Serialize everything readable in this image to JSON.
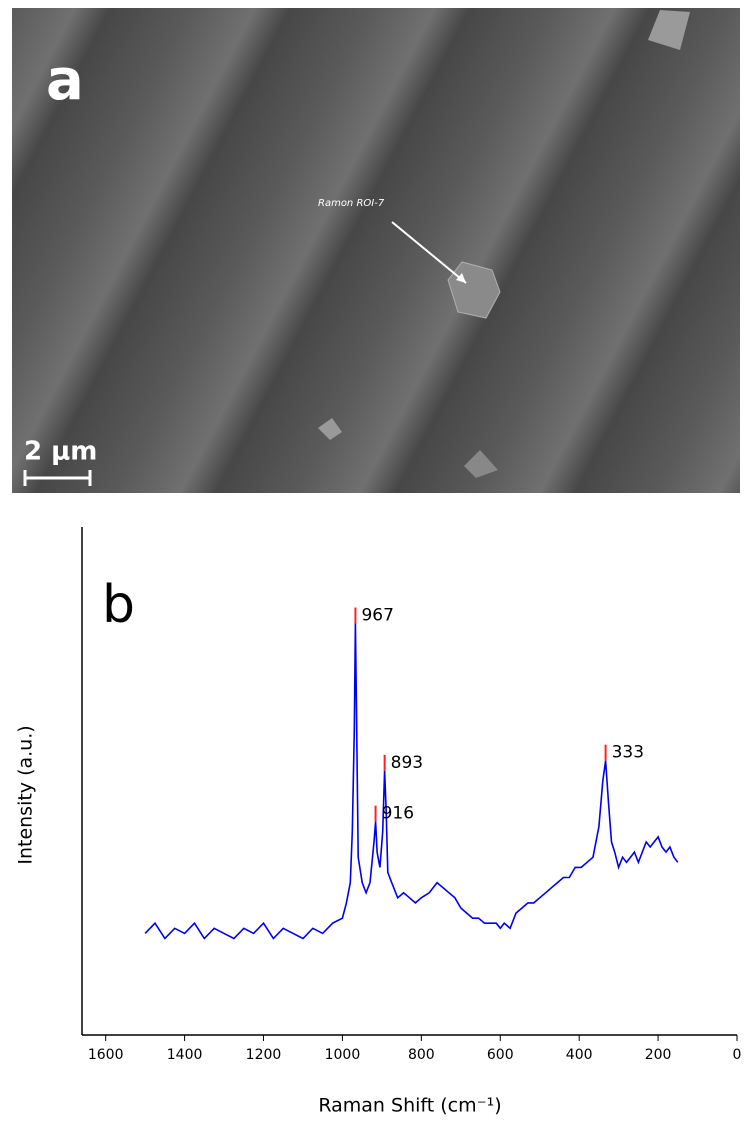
{
  "panel_a": {
    "label": "a",
    "annotation": "Ramon ROI-7",
    "scale_bar": "2 μm"
  },
  "chart_data": {
    "type": "line",
    "panel_label": "b",
    "x_label": "Raman Shift (cm⁻¹)",
    "y_label": "Intensity (a.u.)",
    "xlim": [
      1660,
      0
    ],
    "ylim": [
      0,
      100
    ],
    "xticks": [
      1600,
      1400,
      1200,
      1000,
      800,
      600,
      400,
      200,
      0
    ],
    "x": [
      1500,
      1475,
      1450,
      1425,
      1400,
      1375,
      1350,
      1325,
      1300,
      1275,
      1250,
      1225,
      1200,
      1175,
      1150,
      1125,
      1100,
      1075,
      1050,
      1025,
      1000,
      990,
      980,
      975,
      970,
      967,
      964,
      960,
      950,
      940,
      930,
      920,
      916,
      912,
      905,
      898,
      893,
      889,
      885,
      875,
      860,
      845,
      830,
      815,
      800,
      780,
      760,
      745,
      730,
      715,
      700,
      685,
      670,
      655,
      640,
      625,
      610,
      600,
      590,
      575,
      560,
      545,
      530,
      515,
      500,
      485,
      470,
      455,
      440,
      425,
      410,
      395,
      380,
      365,
      350,
      340,
      333,
      326,
      318,
      310,
      300,
      290,
      280,
      270,
      260,
      250,
      240,
      230,
      220,
      210,
      200,
      190,
      180,
      170,
      160,
      150
    ],
    "series": [
      {
        "color": "#0000ee",
        "values": [
          20,
          22,
          19,
          21,
          20,
          22,
          19,
          21,
          20,
          19,
          21,
          20,
          22,
          19,
          21,
          20,
          19,
          21,
          20,
          22,
          23,
          26,
          30,
          40,
          60,
          81,
          62,
          35,
          30,
          28,
          30,
          38,
          42,
          36,
          33,
          40,
          52,
          44,
          32,
          30,
          27,
          28,
          27,
          26,
          27,
          28,
          30,
          29,
          28,
          27,
          25,
          24,
          23,
          23,
          22,
          22,
          22,
          21,
          22,
          21,
          24,
          25,
          26,
          26,
          27,
          28,
          29,
          30,
          31,
          31,
          33,
          33,
          34,
          35,
          41,
          50,
          54,
          46,
          38,
          36,
          33,
          35,
          34,
          35,
          36,
          34,
          36,
          38,
          37,
          38,
          39,
          37,
          36,
          37,
          35,
          34
        ]
      }
    ],
    "annotations": [
      {
        "x": 967,
        "y": 81
      },
      {
        "x": 893,
        "y": 52
      },
      {
        "x": 916,
        "y": 42
      },
      {
        "x": 333,
        "y": 54
      }
    ],
    "annotation_color": "#ff2020"
  }
}
